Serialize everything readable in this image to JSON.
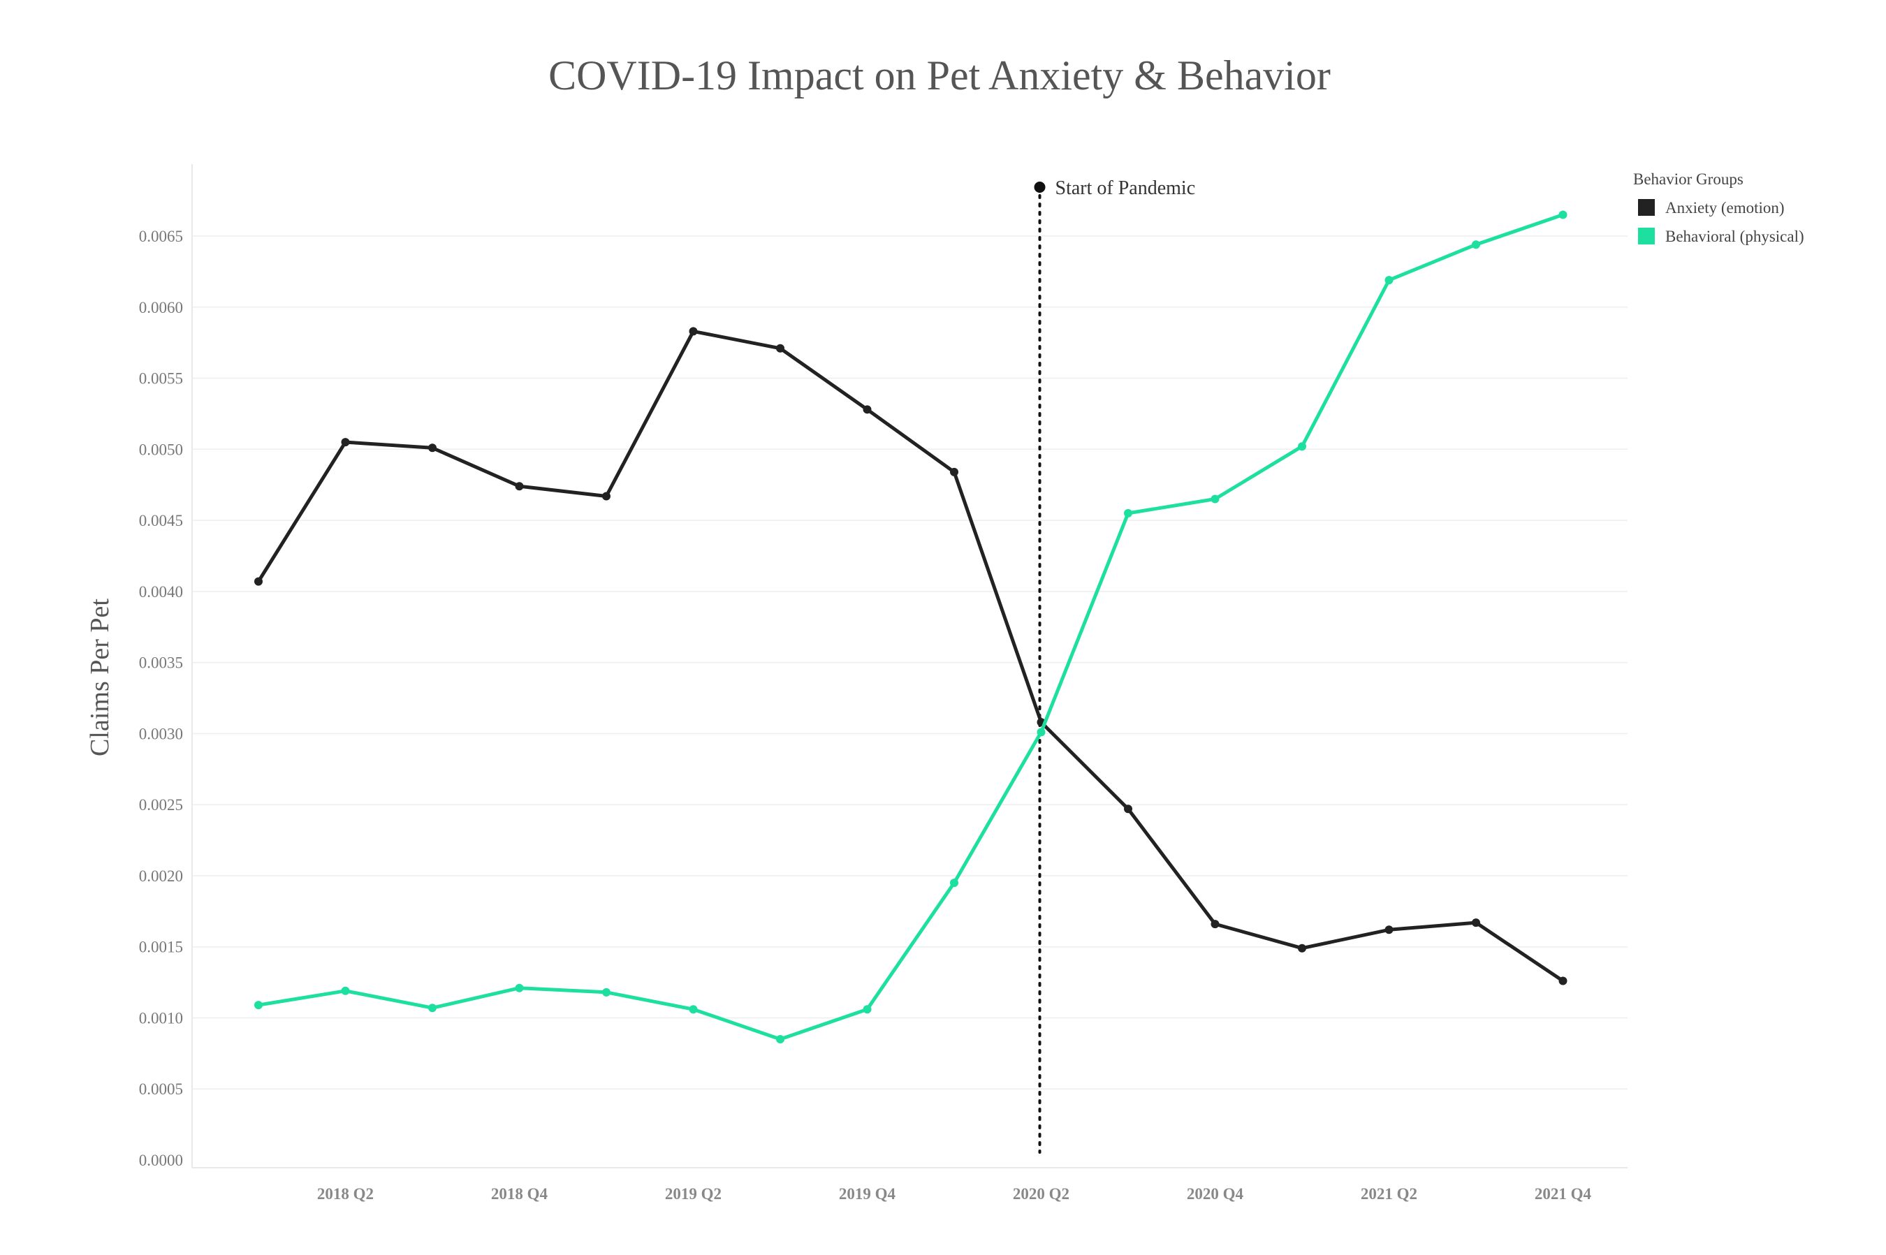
{
  "chart_data": {
    "type": "line",
    "title": "COVID-19 Impact on Pet Anxiety & Behavior",
    "xlabel": "",
    "ylabel": "Claims Per Pet",
    "x": [
      "2018 Q1",
      "2018 Q2",
      "2018 Q3",
      "2018 Q4",
      "2019 Q1",
      "2019 Q2",
      "2019 Q3",
      "2019 Q4",
      "2020 Q1",
      "2020 Q2",
      "2020 Q3",
      "2020 Q4",
      "2021 Q1",
      "2021 Q2",
      "2021 Q3",
      "2021 Q4"
    ],
    "x_tick_labels": [
      "2018 Q2",
      "2018 Q4",
      "2019 Q2",
      "2019 Q4",
      "2020 Q2",
      "2020 Q4",
      "2021 Q2",
      "2021 Q4"
    ],
    "ylim": [
      0,
      0.0069
    ],
    "yticks": [
      "0.0000",
      "0.0005",
      "0.0010",
      "0.0015",
      "0.0020",
      "0.0025",
      "0.0030",
      "0.0035",
      "0.0040",
      "0.0045",
      "0.0050",
      "0.0055",
      "0.0060",
      "0.0065"
    ],
    "grid": true,
    "legend": {
      "title": "Behavior Groups",
      "placement": "top-right"
    },
    "series": [
      {
        "name": "Anxiety (emotion)",
        "color": "#222222",
        "values": [
          0.00407,
          0.00505,
          0.00501,
          0.00474,
          0.00467,
          0.00583,
          0.00571,
          0.00528,
          0.00484,
          0.00308,
          0.00247,
          0.00166,
          0.00149,
          0.00162,
          0.00167,
          0.00126
        ]
      },
      {
        "name": "Behavioral (physical)",
        "color": "#1de0a0",
        "values": [
          0.00109,
          0.00119,
          0.00107,
          0.00121,
          0.00118,
          0.00106,
          0.00085,
          0.00106,
          0.00195,
          0.00301,
          0.00455,
          0.00465,
          0.00502,
          0.00619,
          0.00644,
          0.00665
        ]
      }
    ],
    "annotations": [
      {
        "label": "Start of Pandemic",
        "x": "2020 Q2",
        "style": "dotted-vertical-line"
      }
    ]
  }
}
